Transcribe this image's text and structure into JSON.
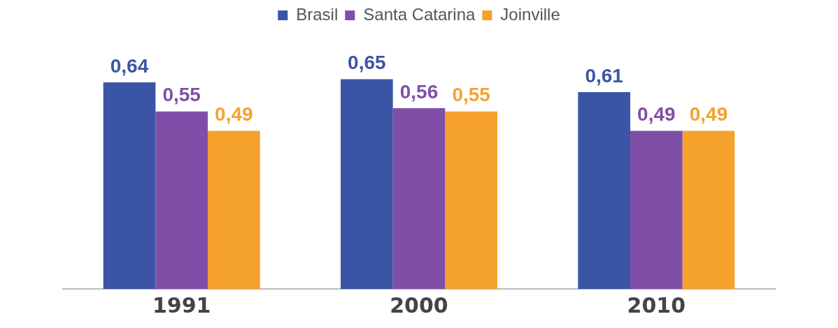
{
  "chart_data": {
    "type": "bar",
    "categories": [
      "1991",
      "2000",
      "2010"
    ],
    "series": [
      {
        "name": "Brasil",
        "color": "#3a55a5",
        "values": [
          0.64,
          0.65,
          0.61
        ],
        "value_labels": [
          "0,64",
          "0,65",
          "0,61"
        ]
      },
      {
        "name": "Santa Catarina",
        "color": "#7f4fa8",
        "values": [
          0.55,
          0.56,
          0.49
        ],
        "value_labels": [
          "0,55",
          "0,56",
          "0,49"
        ]
      },
      {
        "name": "Joinville",
        "color": "#f5a12e",
        "values": [
          0.49,
          0.55,
          0.49
        ],
        "value_labels": [
          "0,49",
          "0,55",
          "0,49"
        ]
      }
    ],
    "legend": "top",
    "grid": false
  }
}
